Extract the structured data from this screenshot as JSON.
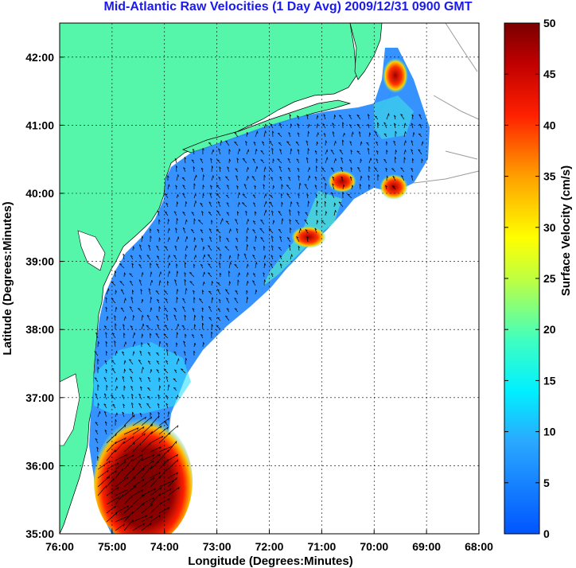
{
  "title": "Mid-Atlantic Raw Velocities (1 Day Avg) 2009/12/31 0900 GMT",
  "x_axis": {
    "label": "Longitude (Degrees:Minutes)",
    "ticks": [
      "76:00",
      "75:00",
      "74:00",
      "73:00",
      "72:00",
      "71:00",
      "70:00",
      "69:00",
      "68:00"
    ]
  },
  "y_axis": {
    "label": "Latitude (Degrees:Minutes)",
    "ticks": [
      "42:00",
      "41:00",
      "40:00",
      "39:00",
      "38:00",
      "37:00",
      "36:00",
      "35:00"
    ]
  },
  "colorbar": {
    "label": "Surface Velocity (cm/s)",
    "ticks": [
      "50",
      "45",
      "40",
      "35",
      "30",
      "25",
      "20",
      "15",
      "10",
      "5",
      "0"
    ],
    "range": [
      0,
      50
    ]
  },
  "map": {
    "lon_range": [
      -76,
      -68
    ],
    "lat_range": [
      35,
      42.5
    ],
    "land_color": "#55f5aa",
    "grid": true
  }
}
